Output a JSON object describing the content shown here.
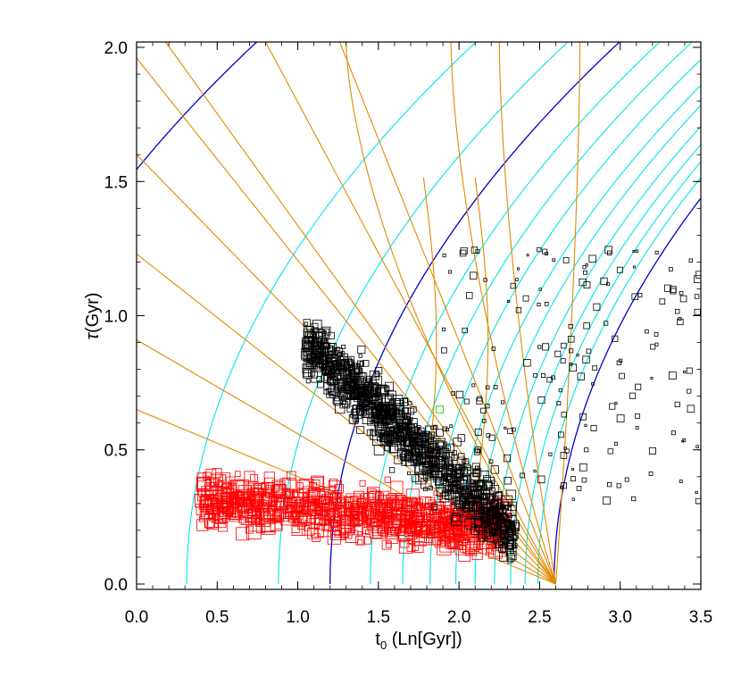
{
  "chart_data": {
    "type": "scatter",
    "title": "",
    "xlabel": {
      "main": "t",
      "sub": "0",
      "rest": " (Ln[Gyr])"
    },
    "ylabel": {
      "symbol": "τ",
      "rest": "(Gyr)"
    },
    "xlim": [
      0.0,
      3.5
    ],
    "ylim": [
      -0.02,
      2.02
    ],
    "xticks": [
      "0.0",
      "0.5",
      "1.0",
      "1.5",
      "2.0",
      "2.5",
      "3.0",
      "3.5"
    ],
    "yticks": [
      "0.0",
      "0.5",
      "1.0",
      "1.5",
      "2.0"
    ],
    "xtick_values": [
      0.0,
      0.5,
      1.0,
      1.5,
      2.0,
      2.5,
      3.0,
      3.5
    ],
    "ytick_values": [
      0.0,
      0.5,
      1.0,
      1.5,
      2.0
    ],
    "grid": false,
    "colors": {
      "background": "#ffffff",
      "axes": "#000000",
      "cyan_curves": "#00e5e5",
      "blue_curves": "#0000c8",
      "orange_curves": "#e08a00",
      "black_points": "#000000",
      "red_points": "#ff0000",
      "highlight_point": "#00cc00"
    },
    "series": [
      {
        "color_key": "cyan_curves",
        "kind": "iso-curves",
        "curves": [
          {
            "x_at_zero": 0.31
          },
          {
            "x_at_zero": 0.88
          },
          {
            "x_at_zero": 1.45
          },
          {
            "x_at_zero": 1.65
          },
          {
            "x_at_zero": 1.82
          },
          {
            "x_at_zero": 1.98
          },
          {
            "x_at_zero": 2.1
          },
          {
            "x_at_zero": 2.22
          },
          {
            "x_at_zero": 2.32
          },
          {
            "x_at_zero": 2.41
          },
          {
            "x_at_zero": 2.49
          }
        ]
      },
      {
        "color_key": "blue_curves",
        "kind": "iso-curves",
        "curves": [
          {
            "x_at_zero": -1.05
          },
          {
            "x_at_zero": 1.2
          },
          {
            "x_at_zero": 2.59
          }
        ]
      },
      {
        "color_key": "orange_curves",
        "kind": "fan-lines",
        "convergence_point": [
          2.6,
          0.0
        ],
        "y_at_zero": [
          0.65,
          0.91,
          1.23,
          1.6,
          1.96
        ],
        "top_crossings": [
          0.18,
          0.8,
          1.26
        ],
        "vertical_lines": [
          {
            "x": 1.78
          },
          {
            "x": 2.1
          }
        ]
      }
    ],
    "highlight": {
      "x": 1.88,
      "y": 0.65
    }
  }
}
